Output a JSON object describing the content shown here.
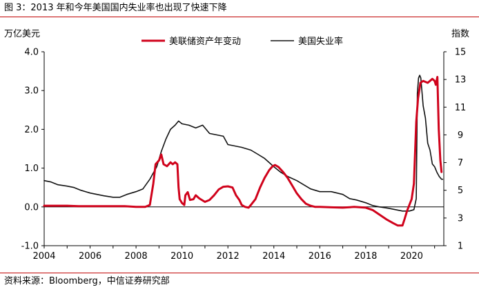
{
  "figure": {
    "title": "图 3：2013 年和今年美国国内失业率也出现了快速下降",
    "source": "资料来源：Bloomberg，中信证券研究部"
  },
  "chart_data": {
    "type": "line",
    "x_ticks": [
      "2004",
      "2006",
      "2008",
      "2010",
      "2012",
      "2014",
      "2016",
      "2018",
      "2020"
    ],
    "xlim": [
      2004,
      2021.4
    ],
    "y_left": {
      "unit": "万亿美元",
      "ticks": [
        "4.0",
        "3.0",
        "2.0",
        "1.0",
        "0.0",
        "-1.0"
      ],
      "ylim": [
        -1,
        4
      ]
    },
    "y_right": {
      "unit": "指数",
      "ticks": [
        "15",
        "13",
        "11",
        "9",
        "7",
        "5",
        "3",
        "1"
      ],
      "ylim": [
        1,
        15
      ]
    },
    "legend_position": "top-center",
    "series": [
      {
        "name": "美联储资产年变动",
        "axis": "left",
        "color": "#d0021b",
        "points": [
          [
            2004.0,
            0.03
          ],
          [
            2004.5,
            0.03
          ],
          [
            2005.0,
            0.03
          ],
          [
            2005.5,
            0.02
          ],
          [
            2006.0,
            0.02
          ],
          [
            2006.5,
            0.02
          ],
          [
            2007.0,
            0.02
          ],
          [
            2007.5,
            0.02
          ],
          [
            2008.0,
            0.0
          ],
          [
            2008.4,
            0.0
          ],
          [
            2008.6,
            0.05
          ],
          [
            2008.75,
            0.6
          ],
          [
            2008.85,
            1.1
          ],
          [
            2009.0,
            1.2
          ],
          [
            2009.1,
            1.35
          ],
          [
            2009.2,
            1.1
          ],
          [
            2009.35,
            1.05
          ],
          [
            2009.5,
            1.15
          ],
          [
            2009.6,
            1.1
          ],
          [
            2009.7,
            1.15
          ],
          [
            2009.8,
            1.1
          ],
          [
            2009.85,
            0.5
          ],
          [
            2009.9,
            0.2
          ],
          [
            2010.0,
            0.1
          ],
          [
            2010.1,
            0.05
          ],
          [
            2010.15,
            0.3
          ],
          [
            2010.25,
            0.38
          ],
          [
            2010.35,
            0.18
          ],
          [
            2010.5,
            0.2
          ],
          [
            2010.6,
            0.3
          ],
          [
            2010.75,
            0.22
          ],
          [
            2011.0,
            0.13
          ],
          [
            2011.2,
            0.18
          ],
          [
            2011.4,
            0.3
          ],
          [
            2011.6,
            0.45
          ],
          [
            2011.8,
            0.52
          ],
          [
            2012.0,
            0.53
          ],
          [
            2012.2,
            0.5
          ],
          [
            2012.35,
            0.3
          ],
          [
            2012.5,
            0.18
          ],
          [
            2012.6,
            0.05
          ],
          [
            2012.75,
            0.0
          ],
          [
            2012.9,
            -0.02
          ],
          [
            2013.0,
            0.05
          ],
          [
            2013.2,
            0.2
          ],
          [
            2013.4,
            0.5
          ],
          [
            2013.6,
            0.75
          ],
          [
            2013.8,
            0.95
          ],
          [
            2013.95,
            1.05
          ],
          [
            2014.05,
            1.08
          ],
          [
            2014.2,
            1.03
          ],
          [
            2014.4,
            0.9
          ],
          [
            2014.6,
            0.75
          ],
          [
            2014.8,
            0.55
          ],
          [
            2015.0,
            0.35
          ],
          [
            2015.2,
            0.2
          ],
          [
            2015.4,
            0.08
          ],
          [
            2015.6,
            0.03
          ],
          [
            2015.8,
            0.0
          ],
          [
            2016.0,
            0.0
          ],
          [
            2016.5,
            -0.01
          ],
          [
            2017.0,
            -0.02
          ],
          [
            2017.5,
            0.0
          ],
          [
            2018.0,
            -0.02
          ],
          [
            2018.3,
            -0.08
          ],
          [
            2018.6,
            -0.2
          ],
          [
            2018.9,
            -0.32
          ],
          [
            2019.2,
            -0.42
          ],
          [
            2019.4,
            -0.48
          ],
          [
            2019.6,
            -0.48
          ],
          [
            2019.7,
            -0.3
          ],
          [
            2019.8,
            -0.1
          ],
          [
            2019.9,
            0.05
          ],
          [
            2020.0,
            0.2
          ],
          [
            2020.1,
            0.6
          ],
          [
            2020.2,
            2.2
          ],
          [
            2020.28,
            2.8
          ],
          [
            2020.38,
            3.2
          ],
          [
            2020.5,
            3.25
          ],
          [
            2020.7,
            3.2
          ],
          [
            2020.9,
            3.3
          ],
          [
            2021.0,
            3.25
          ],
          [
            2021.05,
            3.15
          ],
          [
            2021.12,
            3.35
          ],
          [
            2021.18,
            2.0
          ],
          [
            2021.25,
            1.2
          ],
          [
            2021.3,
            0.9
          ]
        ]
      },
      {
        "name": "美国失业率",
        "axis": "right",
        "color": "#111111",
        "points": [
          [
            2004.0,
            5.7
          ],
          [
            2004.3,
            5.6
          ],
          [
            2004.6,
            5.4
          ],
          [
            2005.0,
            5.3
          ],
          [
            2005.3,
            5.2
          ],
          [
            2005.6,
            5.0
          ],
          [
            2006.0,
            4.8
          ],
          [
            2006.3,
            4.7
          ],
          [
            2006.6,
            4.6
          ],
          [
            2007.0,
            4.5
          ],
          [
            2007.3,
            4.5
          ],
          [
            2007.6,
            4.7
          ],
          [
            2008.0,
            4.9
          ],
          [
            2008.3,
            5.1
          ],
          [
            2008.6,
            5.8
          ],
          [
            2008.9,
            6.7
          ],
          [
            2009.1,
            7.8
          ],
          [
            2009.3,
            8.7
          ],
          [
            2009.5,
            9.4
          ],
          [
            2009.7,
            9.7
          ],
          [
            2009.85,
            10.0
          ],
          [
            2010.0,
            9.8
          ],
          [
            2010.3,
            9.7
          ],
          [
            2010.6,
            9.5
          ],
          [
            2010.9,
            9.7
          ],
          [
            2011.2,
            9.1
          ],
          [
            2011.5,
            9.0
          ],
          [
            2011.8,
            8.9
          ],
          [
            2012.0,
            8.3
          ],
          [
            2012.3,
            8.2
          ],
          [
            2012.6,
            8.1
          ],
          [
            2013.0,
            7.9
          ],
          [
            2013.3,
            7.6
          ],
          [
            2013.6,
            7.3
          ],
          [
            2014.0,
            6.7
          ],
          [
            2014.3,
            6.3
          ],
          [
            2014.6,
            6.0
          ],
          [
            2015.0,
            5.7
          ],
          [
            2015.3,
            5.4
          ],
          [
            2015.6,
            5.1
          ],
          [
            2016.0,
            4.9
          ],
          [
            2016.5,
            4.9
          ],
          [
            2017.0,
            4.7
          ],
          [
            2017.3,
            4.4
          ],
          [
            2017.6,
            4.3
          ],
          [
            2018.0,
            4.1
          ],
          [
            2018.3,
            3.9
          ],
          [
            2018.6,
            3.8
          ],
          [
            2019.0,
            3.7
          ],
          [
            2019.3,
            3.6
          ],
          [
            2019.6,
            3.5
          ],
          [
            2019.9,
            3.5
          ],
          [
            2020.1,
            3.6
          ],
          [
            2020.2,
            4.4
          ],
          [
            2020.25,
            12.0
          ],
          [
            2020.3,
            13.1
          ],
          [
            2020.35,
            13.3
          ],
          [
            2020.4,
            13.1
          ],
          [
            2020.5,
            11.1
          ],
          [
            2020.6,
            10.2
          ],
          [
            2020.7,
            8.4
          ],
          [
            2020.8,
            7.9
          ],
          [
            2020.9,
            6.9
          ],
          [
            2021.0,
            6.7
          ],
          [
            2021.1,
            6.3
          ],
          [
            2021.2,
            6.0
          ],
          [
            2021.3,
            5.8
          ],
          [
            2021.35,
            5.8
          ]
        ]
      }
    ]
  }
}
